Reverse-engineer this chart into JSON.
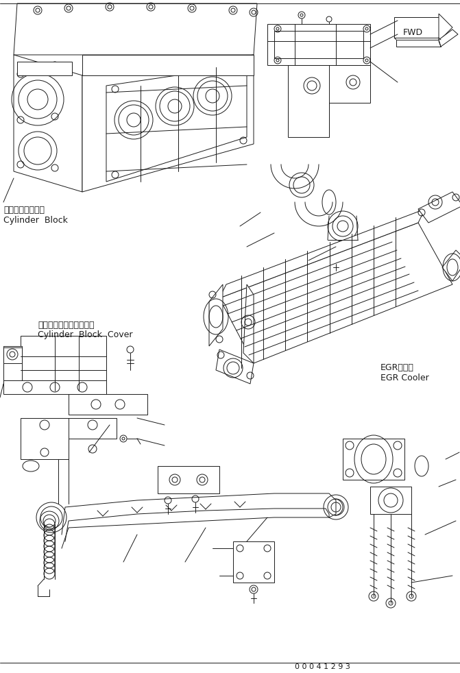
{
  "background_color": "#ffffff",
  "line_color": "#1a1a1a",
  "labels": {
    "cylinder_block_jp": "シリンダブロック",
    "cylinder_block_en": "Cylinder  Block",
    "cylinder_block_cover_jp": "シリンダブロックカバー",
    "cylinder_block_cover_en": "Cylinder  Block  Cover",
    "egr_cooler_jp": "EGRクーラ",
    "egr_cooler_en": "EGR Cooler",
    "fwd": "FWD",
    "part_number": "0 0 0 4 1 2 9 3"
  },
  "figsize": [
    6.71,
    9.82
  ],
  "dpi": 100
}
